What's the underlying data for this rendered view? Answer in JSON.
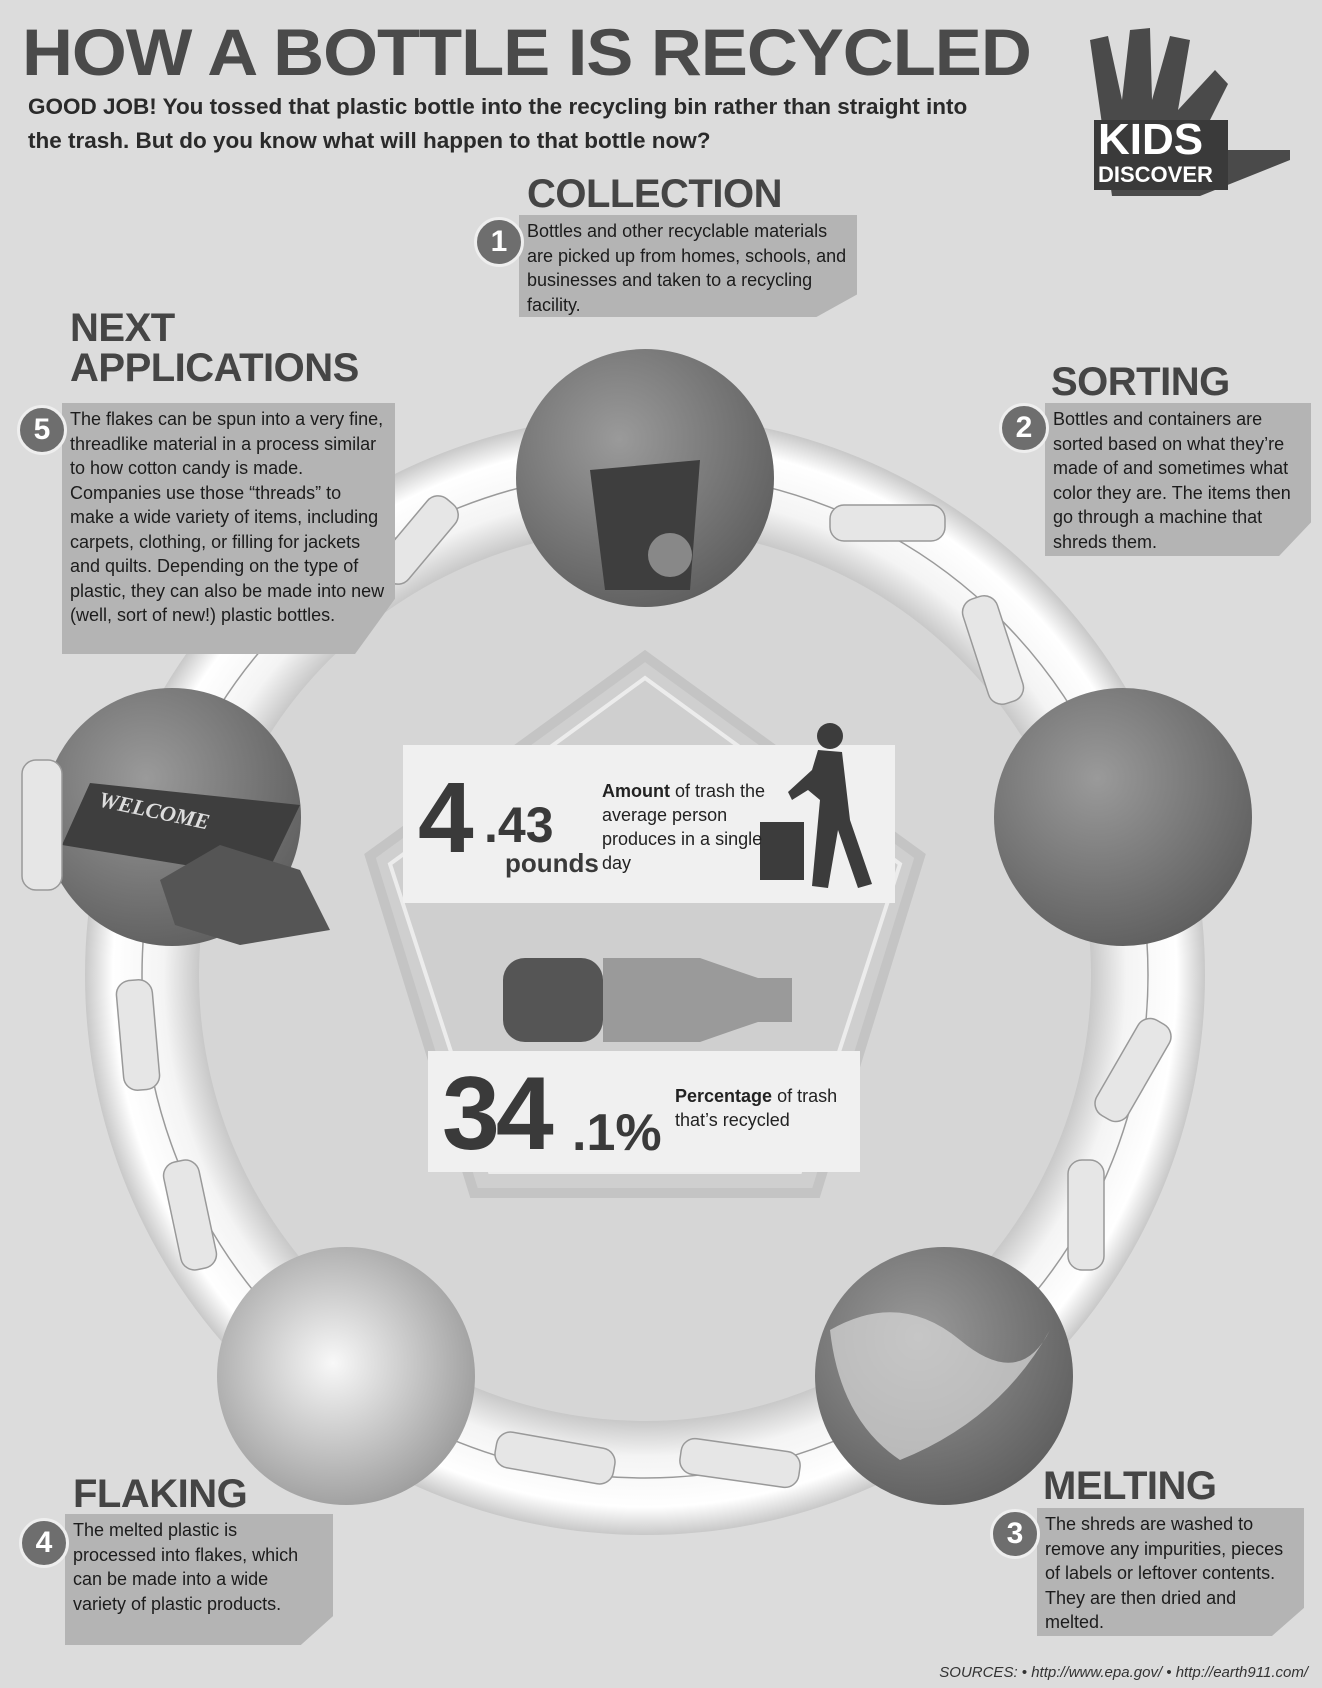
{
  "header": {
    "title": "HOW A BOTTLE IS RECYCLED",
    "intro": "GOOD JOB! You tossed that plastic bottle into the recycling bin rather than straight into the trash. But do you know what will happen to that bottle now?"
  },
  "logo": {
    "line1": "KIDS",
    "line2": "DISCOVER"
  },
  "steps": [
    {
      "number": "1",
      "heading": "COLLECTION",
      "text": "Bottles and other recyclable materials are picked up from homes, schools, and businesses and taken to a recycling facility."
    },
    {
      "number": "2",
      "heading": "SORTING",
      "text": "Bottles and containers are sorted based on what they’re made of and sometimes what color they are. The items then go through a machine that shreds them."
    },
    {
      "number": "3",
      "heading": "MELTING",
      "text": "The shreds are washed to remove any impurities, pieces of labels or leftover contents. They are then dried and melted."
    },
    {
      "number": "4",
      "heading": "FLAKING",
      "text": "The melted plastic is processed into flakes, which can be made into a wide variety of plastic products."
    },
    {
      "number": "5",
      "heading": "NEXT APPLICATIONS",
      "text": "The flakes can be spun into a very fine, threadlike material in a process similar to how cotton candy is made. Companies use those “threads” to make a wide variety of items, including carpets, clothing, or filling for jackets and quilts. Depending on the type of plastic, they can also be made into new (well, sort of new!) plastic bottles."
    }
  ],
  "stats": [
    {
      "whole": "4",
      "fraction": ".43",
      "unit": "pounds",
      "label_bold": "Amount",
      "label_rest": "of trash the average person produces in a single day"
    },
    {
      "whole": "34",
      "fraction": ".1%",
      "label_bold": "Percentage",
      "label_rest": "of trash that’s recycled"
    }
  ],
  "photo_label": "WELCOME",
  "sources": "SOURCES: • http://www.epa.gov/ • http://earth911.com/"
}
